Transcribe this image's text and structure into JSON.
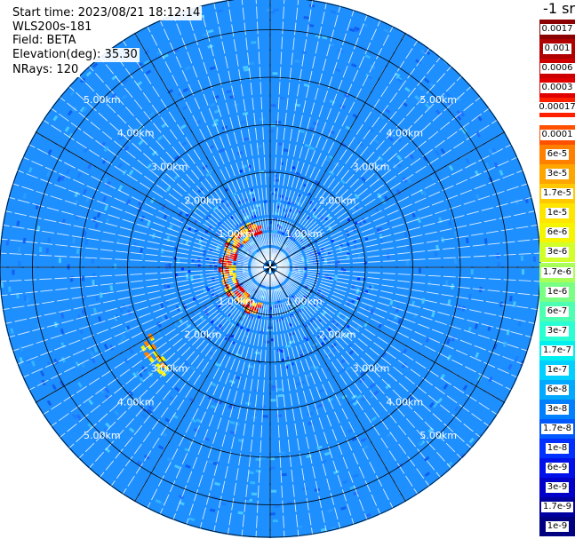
{
  "header": {
    "start_time": "Start time: 2023/08/21 18:12:14",
    "instrument": "WLS200s-181",
    "field": "Field: BETA",
    "elevation": "Elevation(deg): 35.30",
    "nrays": "NRays: 120"
  },
  "colorbar": {
    "title": "-1 sr",
    "labels": [
      "0.0017",
      "0.001",
      "0.0006",
      "0.0003",
      "0.00017",
      "0.0001",
      "6e-5",
      "3e-5",
      "1.7e-5",
      "1e-5",
      "6e-6",
      "3e-6",
      "1.7e-6",
      "1e-6",
      "6e-7",
      "3e-7",
      "1.7e-7",
      "1e-7",
      "6e-8",
      "3e-8",
      "1.7e-8",
      "1e-8",
      "6e-9",
      "3e-9",
      "1.7e-9",
      "1e-9"
    ],
    "colors": [
      "#8b0000",
      "#b00000",
      "#cc0000",
      "#e00000",
      "#ff2000",
      "#ff5000",
      "#ff8000",
      "#ffa500",
      "#ffc800",
      "#ffe600",
      "#f5f500",
      "#d2ff2a",
      "#a8ff58",
      "#78ff84",
      "#4dffb0",
      "#2affd4",
      "#00f0f0",
      "#00d0ff",
      "#00a8ff",
      "#0080ff",
      "#0058ff",
      "#0030ff",
      "#0010e8",
      "#0000c8",
      "#0000a0",
      "#000080"
    ]
  },
  "chart_data": {
    "type": "heatmap",
    "projection": "polar-ppi",
    "field": "BETA",
    "nrays": 120,
    "ring_labels": [
      "1.00km",
      "2.00km",
      "3.00km",
      "4.00km",
      "5.00km"
    ],
    "rings_km": [
      1,
      2,
      3,
      4,
      5
    ],
    "max_range_km": 5.7,
    "dominant_color": "#1e90ff",
    "features": [
      {
        "kind": "high-backscatter arc",
        "range_km": [
          0.75,
          1.05
        ],
        "azimuth_deg": [
          195,
          345
        ],
        "level": "1e-5 to 3e-4"
      },
      {
        "kind": "patch",
        "range_km": [
          2.9,
          3.2
        ],
        "azimuth_deg": [
          225,
          240
        ],
        "level": "1e-5 to 6e-5"
      }
    ]
  }
}
